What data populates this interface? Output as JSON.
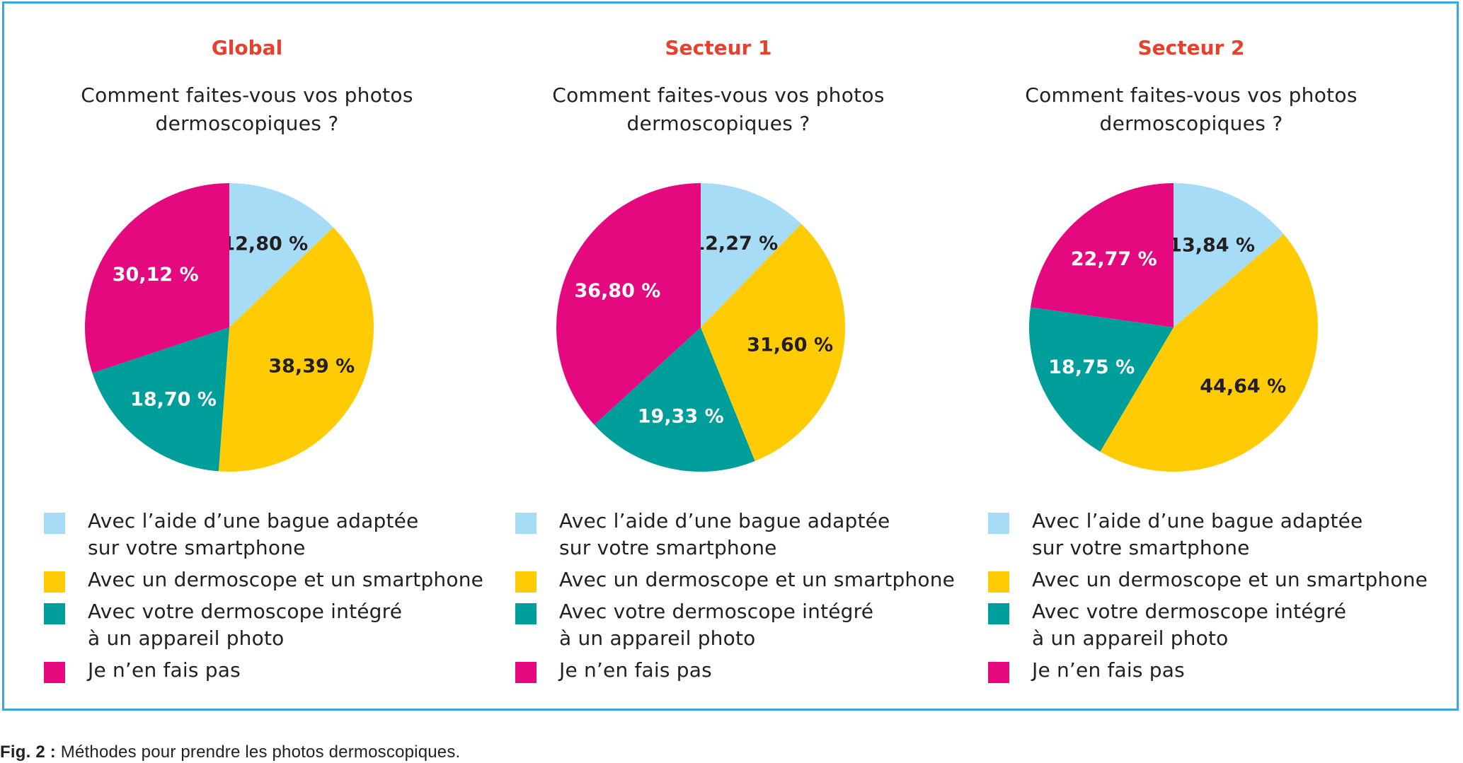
{
  "colors": {
    "series": [
      "#a7dcf7",
      "#ffcb05",
      "#009e9a",
      "#e5097f"
    ],
    "label_text": [
      "#231f20",
      "#231f20",
      "#ffffff",
      "#ffffff"
    ]
  },
  "legend_entries": [
    "Avec l’aide d’une bague adaptée\nsur votre smartphone",
    "Avec un dermoscope et un smartphone",
    "Avec votre dermoscope intégré\nà un appareil photo",
    "Je n’en fais pas"
  ],
  "chart_data": [
    {
      "type": "pie",
      "title": "Global",
      "subtitle": "Comment faites-vous vos photos\ndermoscopiques ?",
      "categories": [
        "Avec l’aide d’une bague adaptée sur votre smartphone",
        "Avec un dermoscope et un smartphone",
        "Avec votre dermoscope intégré à un appareil photo",
        "Je n’en fais pas"
      ],
      "values": [
        12.8,
        38.39,
        18.7,
        30.12
      ],
      "data_labels": [
        "12,80 %",
        "38,39 %",
        "18,70 %",
        "30,12 %"
      ],
      "legend_placement": "bottom"
    },
    {
      "type": "pie",
      "title": "Secteur 1",
      "subtitle": "Comment faites-vous vos photos\ndermoscopiques ?",
      "categories": [
        "Avec l’aide d’une bague adaptée sur votre smartphone",
        "Avec un dermoscope et un smartphone",
        "Avec votre dermoscope intégré à un appareil photo",
        "Je n’en fais pas"
      ],
      "values": [
        12.27,
        31.6,
        19.33,
        36.8
      ],
      "data_labels": [
        "12,27 %",
        "31,60 %",
        "19,33 %",
        "36,80 %"
      ],
      "legend_placement": "bottom"
    },
    {
      "type": "pie",
      "title": "Secteur 2",
      "subtitle": "Comment faites-vous vos photos\ndermoscopiques ?",
      "categories": [
        "Avec l’aide d’une bague adaptée sur votre smartphone",
        "Avec un dermoscope et un smartphone",
        "Avec votre dermoscope intégré à un appareil photo",
        "Je n’en fais pas"
      ],
      "values": [
        13.84,
        44.64,
        18.75,
        22.77
      ],
      "data_labels": [
        "13,84 %",
        "44,64 %",
        "18,75 %",
        "22,77 %"
      ],
      "legend_placement": "bottom"
    }
  ],
  "caption": {
    "label": "Fig. 2 :",
    "text": " Méthodes pour prendre les photos dermoscopiques."
  }
}
